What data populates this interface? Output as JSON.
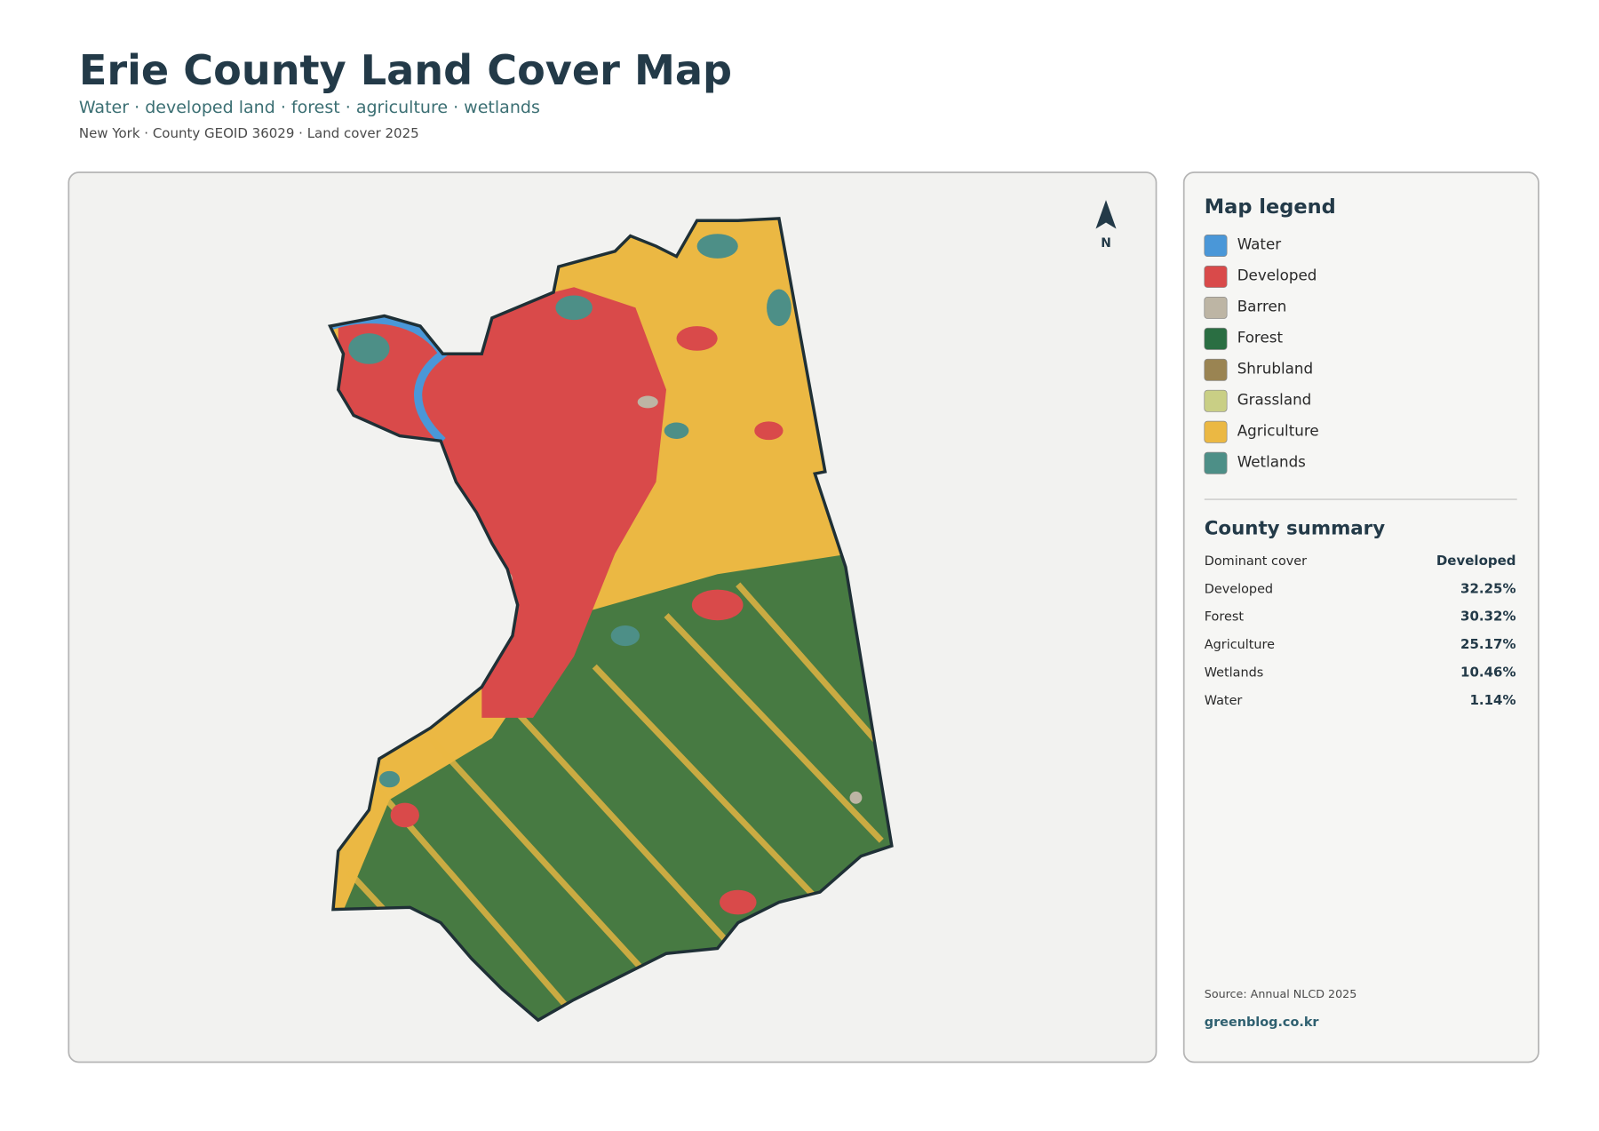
{
  "header": {
    "title": "Erie County Land Cover Map",
    "subtitle": "Water · developed land · forest · agriculture · wetlands",
    "meta": "New York · County GEOID 36029 · Land cover 2025"
  },
  "map": {
    "north_label": "N"
  },
  "legend": {
    "title": "Map legend",
    "items": [
      {
        "name": "Water",
        "color": "#4a97d8"
      },
      {
        "name": "Developed",
        "color": "#d94a4a"
      },
      {
        "name": "Barren",
        "color": "#bdb5a4"
      },
      {
        "name": "Forest",
        "color": "#2a6e42"
      },
      {
        "name": "Shrubland",
        "color": "#9a8452"
      },
      {
        "name": "Grassland",
        "color": "#c9cf85"
      },
      {
        "name": "Agriculture",
        "color": "#ebb843"
      },
      {
        "name": "Wetlands",
        "color": "#4d8f87"
      }
    ]
  },
  "summary": {
    "title": "County summary",
    "rows": [
      [
        "Dominant cover",
        "Developed"
      ],
      [
        "Developed",
        "32.25%"
      ],
      [
        "Forest",
        "30.32%"
      ],
      [
        "Agriculture",
        "25.17%"
      ],
      [
        "Wetlands",
        "10.46%"
      ],
      [
        "Water",
        "1.14%"
      ]
    ],
    "source": "Source: Annual NLCD 2025",
    "site": "greenblog.co.kr"
  }
}
